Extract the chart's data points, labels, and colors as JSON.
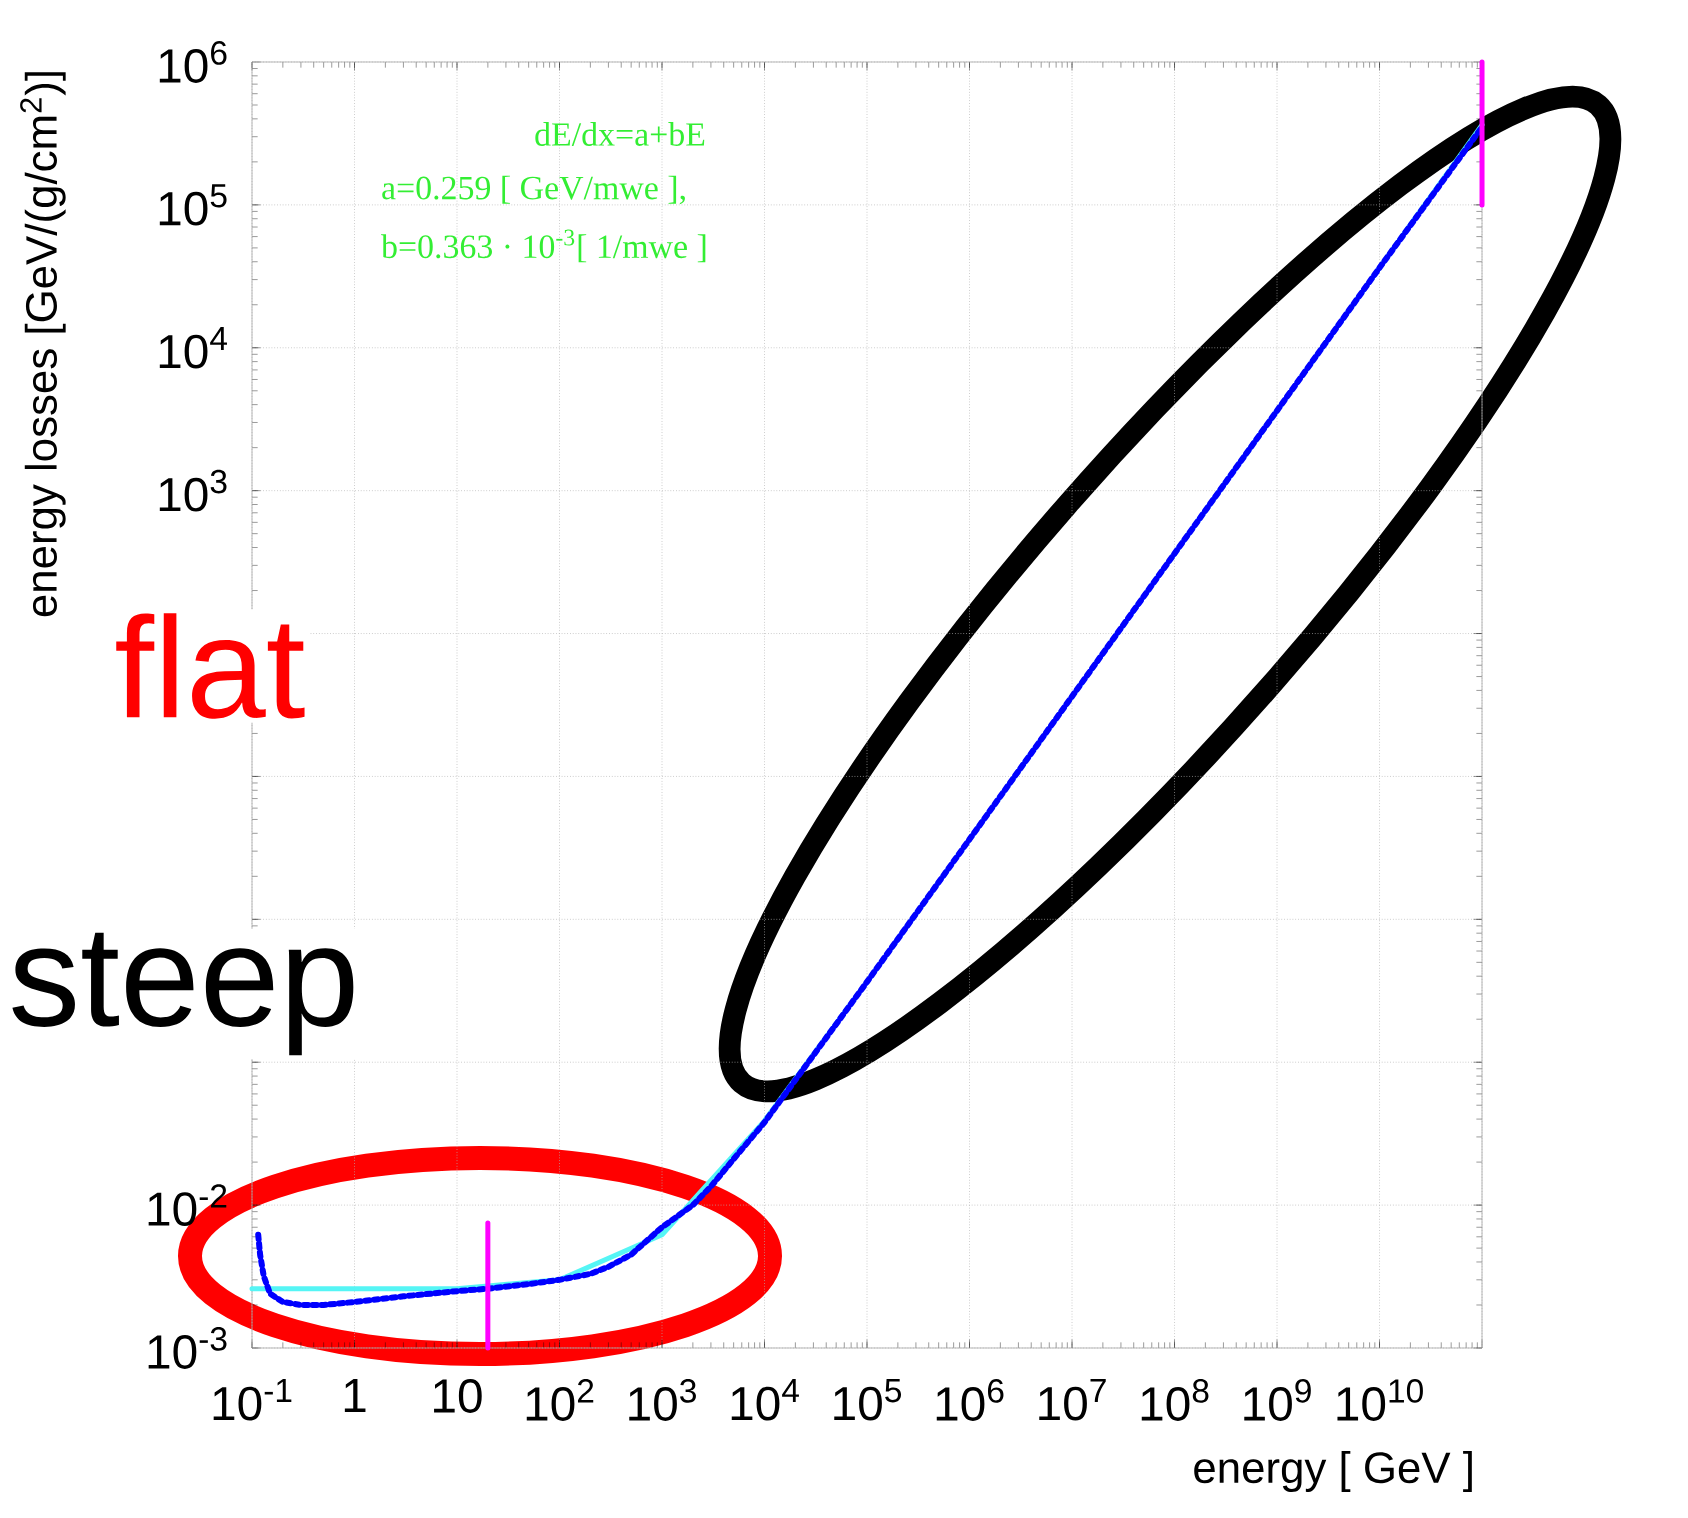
{
  "chart_data": {
    "type": "line",
    "xlabel": "energy [ GeV ]",
    "ylabel": "energy losses [GeV/(g/cm$^{2}$)]",
    "log": "xy",
    "grid": true,
    "marker": "none",
    "xlim": [
      0.1,
      100000000000
    ],
    "ylim": [
      0.001,
      1000000
    ],
    "xticks": [
      {
        "value": 0.1,
        "label": "10$^{-1}$"
      },
      1,
      10,
      {
        "value": 100,
        "label": "10$^{2}$"
      },
      {
        "value": 1000,
        "label": "10$^{3}$"
      },
      {
        "value": 10000,
        "label": "10$^{4}$"
      },
      {
        "value": 100000,
        "label": "10$^{5}$"
      },
      {
        "value": 1000000,
        "label": "10$^{6}$"
      },
      {
        "value": 10000000,
        "label": "10$^{7}$"
      },
      {
        "value": 100000000,
        "label": "10$^{8}$"
      },
      {
        "value": 1000000000,
        "label": "10$^{9}$"
      },
      {
        "value": 10000000000,
        "label": "10$^{10}$"
      },
      {
        "value": 100000000000,
        "label": null
      }
    ],
    "yticks": [
      {
        "value": 0.001,
        "label": "10$^{-3}$"
      },
      {
        "value": 0.01,
        "label": "10$^{-2}$"
      },
      {
        "value": 0.1,
        "label": null
      },
      {
        "value": 1,
        "label": null
      },
      {
        "value": 10,
        "label": null
      },
      {
        "value": 100,
        "label": null
      },
      {
        "value": 1000,
        "label": "10$^{3}$"
      },
      {
        "value": 10000,
        "label": "10$^{4}$"
      },
      {
        "value": 100000,
        "label": "10$^{5}$"
      },
      {
        "value": 1000000,
        "label": "10$^{6}$"
      }
    ],
    "series": [
      {
        "color": "#55f5f5",
        "line_style": "solid",
        "x": [
          0.1,
          10,
          100,
          1000,
          10000,
          100000,
          1000000,
          10000000,
          100000000,
          1000000000,
          10000000000,
          100000000000
        ],
        "values": [
          0.0026,
          0.0026,
          0.003,
          0.0062,
          0.0389,
          0.365,
          3.63,
          36.3,
          363,
          3630,
          36300,
          363000
        ]
      },
      {
        "color": "#0000ff",
        "line_style": "dotted",
        "x": [
          0.115,
          0.12,
          0.13,
          0.15,
          0.2,
          0.3,
          0.5,
          1,
          3,
          10,
          20,
          50,
          100,
          200,
          300,
          500,
          1000,
          2000,
          3000,
          5000,
          10000,
          100000,
          1000000,
          10000000,
          100000000,
          1000000000,
          10000000000,
          100000000000
        ],
        "values": [
          0.0062,
          0.0045,
          0.0032,
          0.0024,
          0.0021,
          0.002,
          0.002,
          0.0021,
          0.0023,
          0.0025,
          0.0026,
          0.0028,
          0.003,
          0.0033,
          0.0037,
          0.0045,
          0.007,
          0.01,
          0.0135,
          0.021,
          0.038,
          0.365,
          3.63,
          36.3,
          363,
          3630,
          36300,
          350000
        ]
      },
      {
        "color": "#ff00ff",
        "line_style": "solid",
        "x": [
          20,
          20
        ],
        "values": [
          0.001,
          0.0075
        ]
      },
      {
        "color": "#ff00ff",
        "line_style": "solid",
        "x": [
          100000000000,
          100000000000
        ],
        "values": [
          100000,
          1000000
        ]
      }
    ],
    "annotations": [
      "dE/dx=a+bE",
      "a=0.259 [ GeV/mwe ],",
      "b=0.363 · 10$^{-3}$[ 1/mwe ]",
      "flat",
      "steep"
    ]
  }
}
